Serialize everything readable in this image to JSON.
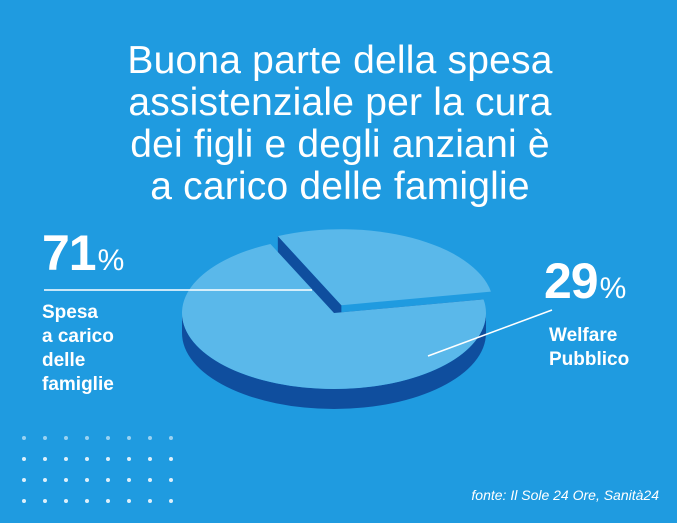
{
  "title_lines": [
    "Buona parte della spesa",
    "assistenziale per la cura",
    "dei figli e degli anziani è",
    "a carico delle famiglie"
  ],
  "source": "fonte: Il Sole 24 Ore, Sanità24",
  "colors": {
    "background": "#1f9be0",
    "pie_top": "#5ab8ea",
    "pie_side": "#0f4e9e",
    "text": "#ffffff"
  },
  "chart_data": {
    "type": "pie",
    "title": "Buona parte della spesa assistenziale per la cura dei figli e degli anziani è a carico delle famiglie",
    "style": "3d-exploded",
    "slices": [
      {
        "label_lines": [
          "Spesa",
          "a carico",
          "delle",
          "famiglie"
        ],
        "value": 71,
        "value_label": "71",
        "unit": "%"
      },
      {
        "label_lines": [
          "Welfare",
          "Pubblico"
        ],
        "value": 29,
        "value_label": "29",
        "unit": "%",
        "exploded": true
      }
    ]
  }
}
